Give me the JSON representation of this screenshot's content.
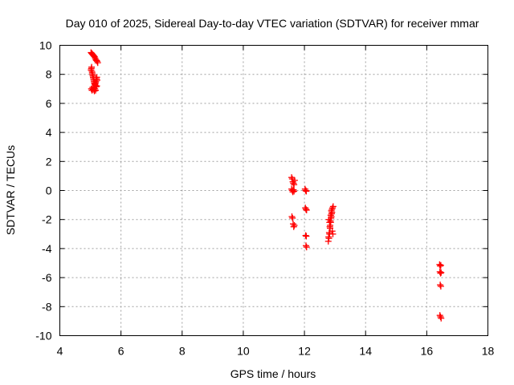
{
  "chart_data": {
    "type": "scatter",
    "title": "Day 010 of 2025, Sidereal Day-to-day VTEC variation (SDTVAR) for receiver mmar",
    "xlabel": "GPS time / hours",
    "ylabel": "SDTVAR / TECUs",
    "xlim": [
      4,
      18
    ],
    "ylim": [
      -10,
      10
    ],
    "xticks": [
      "4",
      "6",
      "8",
      "10",
      "12",
      "14",
      "16",
      "18"
    ],
    "yticks": [
      "-10",
      "-8",
      "-6",
      "-4",
      "-2",
      "0",
      "2",
      "4",
      "6",
      "8",
      "10"
    ],
    "grid": true,
    "marker": "plus",
    "marker_color": "#ff0000",
    "x": [
      5.02,
      5.04,
      5.06,
      5.08,
      5.1,
      5.12,
      5.14,
      5.16,
      5.18,
      5.2,
      5.22,
      5.24,
      5.02,
      5.03,
      5.04,
      5.05,
      5.06,
      5.07,
      5.08,
      5.09,
      5.1,
      5.11,
      5.12,
      5.13,
      5.14,
      5.15,
      5.16,
      5.17,
      5.18,
      5.19,
      5.2,
      5.21,
      5.22,
      5.03,
      5.05,
      5.07,
      5.09,
      5.11,
      5.13,
      5.15,
      5.17,
      5.19,
      5.21,
      11.58,
      11.6,
      11.62,
      11.64,
      11.66,
      11.68,
      11.58,
      11.6,
      11.62,
      11.64,
      11.66,
      11.59,
      11.61,
      11.63,
      11.65,
      11.67,
      12.02,
      12.04,
      12.06,
      12.03,
      12.05,
      12.07,
      12.04,
      12.06,
      12.05,
      12.07,
      12.78,
      12.8,
      12.82,
      12.84,
      12.86,
      12.88,
      12.9,
      12.92,
      12.94,
      12.79,
      12.81,
      12.83,
      12.85,
      12.87,
      12.89,
      12.91,
      12.93,
      12.8,
      12.82,
      12.84,
      12.86,
      12.88,
      12.9,
      16.42,
      16.44,
      16.46,
      16.43,
      16.45,
      16.47,
      16.44,
      16.46,
      16.43,
      16.45,
      16.47
    ],
    "y": [
      9.5,
      9.45,
      9.4,
      9.35,
      9.3,
      9.25,
      9.2,
      9.1,
      9.0,
      8.95,
      8.9,
      8.8,
      8.3,
      8.4,
      8.5,
      8.2,
      8.1,
      8.0,
      7.9,
      7.8,
      7.7,
      7.6,
      7.5,
      7.4,
      7.35,
      7.3,
      7.25,
      7.4,
      7.5,
      7.6,
      7.7,
      7.8,
      7.6,
      7.0,
      6.9,
      7.1,
      6.95,
      7.05,
      6.85,
      7.0,
      6.9,
      7.15,
      7.2,
      0.9,
      0.8,
      0.6,
      0.5,
      0.4,
      0.7,
      0.1,
      0.0,
      -0.1,
      0.05,
      -0.05,
      -1.8,
      -1.9,
      -2.3,
      -2.5,
      -2.4,
      0.1,
      0.0,
      -0.05,
      -1.2,
      -1.3,
      -1.35,
      -3.1,
      -3.15,
      -3.8,
      -3.9,
      -3.5,
      -3.3,
      -3.0,
      -2.6,
      -2.2,
      -1.8,
      -1.5,
      -1.2,
      -1.1,
      -3.2,
      -2.9,
      -2.5,
      -2.1,
      -1.9,
      -1.6,
      -2.8,
      -3.0,
      -2.0,
      -2.2,
      -2.4,
      -1.7,
      -1.4,
      -1.3,
      -5.1,
      -5.2,
      -5.15,
      -5.6,
      -5.7,
      -5.65,
      -6.5,
      -6.6,
      -8.6,
      -8.7,
      -8.8
    ]
  }
}
